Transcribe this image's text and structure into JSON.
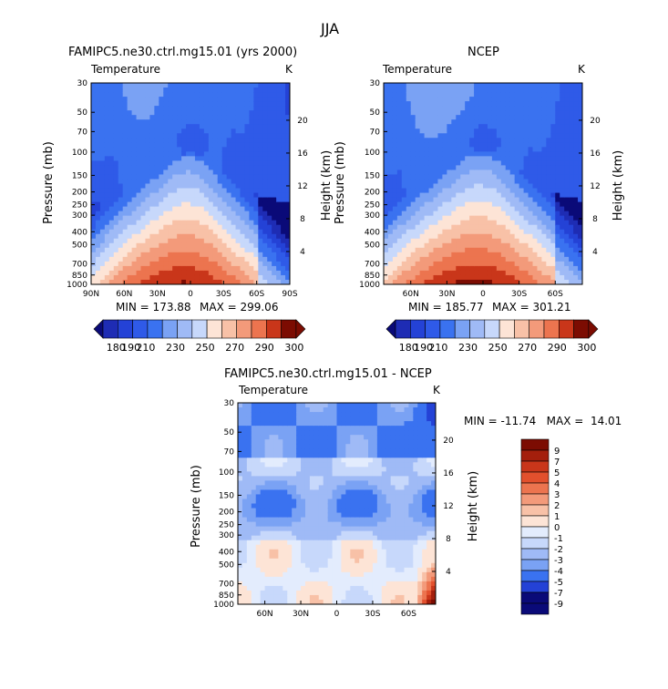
{
  "figure_title": "JJA",
  "chart_data": [
    {
      "type": "heatmap",
      "title": "FAMIPC5.ne30.ctrl.mg15.01 (yrs 2000)",
      "subtitle": "Temperature",
      "units": "K",
      "ylabel": "Pressure (mb)",
      "y2label": "Height (km)",
      "xlabel": "",
      "x_ticks": [
        "90N",
        "60N",
        "30N",
        "0",
        "30S",
        "60S",
        "90S"
      ],
      "y_ticks": [
        30,
        50,
        70,
        100,
        150,
        200,
        250,
        300,
        400,
        500,
        700,
        850,
        1000
      ],
      "y2_ticks": [
        20,
        16,
        12,
        8,
        4
      ],
      "xlim": [
        90,
        -90
      ],
      "ylim": [
        1000,
        30
      ],
      "min_label": "MIN = 173.88",
      "max_label": "MAX = 299.06",
      "min": 173.88,
      "max": 299.06,
      "colorbar_levels": [
        180,
        190,
        200,
        210,
        220,
        230,
        240,
        250,
        260,
        270,
        280,
        290,
        300
      ],
      "colorbar_labels": [
        "180",
        "190",
        "210",
        "230",
        "250",
        "270",
        "290",
        "300"
      ]
    },
    {
      "type": "heatmap",
      "title": "NCEP",
      "subtitle": "Temperature",
      "units": "K",
      "ylabel": "Pressure (mb)",
      "y2label": "Height (km)",
      "x_ticks": [
        "60N",
        "30N",
        "0",
        "30S",
        "60S"
      ],
      "y_ticks": [
        30,
        50,
        70,
        100,
        150,
        200,
        250,
        300,
        400,
        500,
        700,
        850,
        1000
      ],
      "y2_ticks": [
        20,
        16,
        12,
        8,
        4
      ],
      "xlim": [
        82.5,
        -82.5
      ],
      "ylim": [
        1000,
        30
      ],
      "min_label": "MIN = 185.77",
      "max_label": "MAX = 301.21",
      "min": 185.77,
      "max": 301.21,
      "colorbar_levels": [
        180,
        190,
        200,
        210,
        220,
        230,
        240,
        250,
        260,
        270,
        280,
        290,
        300
      ],
      "colorbar_labels": [
        "180",
        "190",
        "210",
        "230",
        "250",
        "270",
        "290",
        "300"
      ]
    },
    {
      "type": "heatmap",
      "title": "FAMIPC5.ne30.ctrl.mg15.01 - NCEP",
      "subtitle": "Temperature",
      "units": "K",
      "ylabel": "Pressure (mb)",
      "y2label": "Height (km)",
      "x_ticks": [
        "60N",
        "30N",
        "0",
        "30S",
        "60S"
      ],
      "y_ticks": [
        30,
        50,
        70,
        100,
        150,
        200,
        250,
        300,
        400,
        500,
        700,
        850,
        1000
      ],
      "y2_ticks": [
        20,
        16,
        12,
        8,
        4
      ],
      "xlim": [
        82.5,
        -82.5
      ],
      "ylim": [
        1000,
        30
      ],
      "minmax_label": "MIN = -11.74   MAX =  14.01",
      "min": -11.74,
      "max": 14.01,
      "colorbar_labels": [
        "9",
        "7",
        "5",
        "4",
        "3",
        "2",
        "1",
        "0",
        "-1",
        "-2",
        "-3",
        "-4",
        "-5",
        "-7",
        "-9"
      ]
    }
  ],
  "colors": {
    "temp": [
      "#0a0a78",
      "#1e2cb4",
      "#2442d6",
      "#2f5ae8",
      "#3a72f0",
      "#5a8af2",
      "#7aa2f4",
      "#9fbaf6",
      "#c7d8fb",
      "#e3ecfd",
      "#fde4d6",
      "#f8c1a7",
      "#f39a7a",
      "#ec744f",
      "#e2502d",
      "#c9361a",
      "#a41f0c",
      "#7c0c02"
    ],
    "diff": [
      "#7c0c02",
      "#a41f0c",
      "#c9361a",
      "#e2502d",
      "#ec744f",
      "#f39a7a",
      "#f8c1a7",
      "#fde4d6",
      "#e3ecfd",
      "#c7d8fb",
      "#9fbaf6",
      "#7aa2f4",
      "#3a72f0",
      "#2442d6",
      "#0a0a78"
    ]
  }
}
